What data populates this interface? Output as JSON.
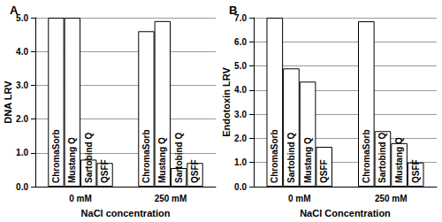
{
  "chart_data": [
    {
      "type": "bar",
      "title": "A",
      "x_label": "NaCl concentration",
      "y_label": "DNA LRV",
      "categories": [
        "0 mM",
        "250 mM"
      ],
      "series": [
        {
          "name": "ChromaSorb",
          "color": "#ffffff",
          "values": [
            5.0,
            4.6
          ]
        },
        {
          "name": "Mustang Q",
          "color": "#ffffff",
          "values": [
            5.0,
            4.9
          ]
        },
        {
          "name": "Sartobind Q",
          "color": "#ffffff",
          "values": [
            0.8,
            0.55
          ]
        },
        {
          "name": "QSFF",
          "color": "#ffffff",
          "values": [
            0.7,
            0.7
          ]
        }
      ],
      "ylim": [
        0,
        5
      ],
      "yticks": [
        {
          "value": 0,
          "label": "0.0"
        },
        {
          "value": 1,
          "label": "1.0"
        },
        {
          "value": 2,
          "label": "2.0"
        },
        {
          "value": 3,
          "label": "3.0"
        },
        {
          "value": 4,
          "label": "4.0"
        },
        {
          "value": 5,
          "label": "5.0"
        }
      ],
      "grid": true
    },
    {
      "type": "bar",
      "title": "B",
      "x_label": "NaCl Concentration",
      "y_label": "Endotoxin LRV",
      "categories": [
        "0 mM",
        "250 mM"
      ],
      "series": [
        {
          "name": "ChromaSorb",
          "color": "#ffffff",
          "values": [
            7.0,
            6.85
          ]
        },
        {
          "name": "Sartobind Q",
          "color": "#ffffff",
          "values": [
            4.9,
            2.3
          ]
        },
        {
          "name": "Mustang Q",
          "color": "#ffffff",
          "values": [
            4.35,
            1.8
          ]
        },
        {
          "name": "QSFF",
          "color": "#ffffff",
          "values": [
            1.65,
            1.0
          ]
        }
      ],
      "ylim": [
        0,
        7
      ],
      "yticks": [
        {
          "value": 0,
          "label": "0.0"
        },
        {
          "value": 1,
          "label": "1.0"
        },
        {
          "value": 2,
          "label": "2.0"
        },
        {
          "value": 3,
          "label": "3.0"
        },
        {
          "value": 4,
          "label": "4.0"
        },
        {
          "value": 5,
          "label": "5.0"
        },
        {
          "value": 6,
          "label": "6.0"
        },
        {
          "value": 7,
          "label": "7.0"
        }
      ],
      "grid": true
    }
  ]
}
